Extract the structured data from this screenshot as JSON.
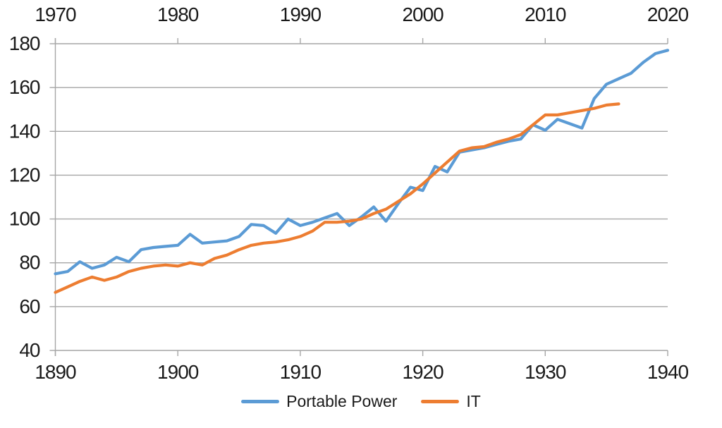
{
  "chart_data": {
    "type": "line",
    "title": "",
    "grid": true,
    "legend_position": "bottom",
    "x_axis_bottom": {
      "range": [
        1890,
        1940
      ],
      "ticks": [
        1890,
        1900,
        1910,
        1920,
        1930,
        1940
      ]
    },
    "x_axis_top": {
      "range": [
        1970,
        2020
      ],
      "ticks": [
        1970,
        1980,
        1990,
        2000,
        2010,
        2020
      ]
    },
    "y_axis": {
      "range": [
        40,
        180
      ],
      "ticks": [
        40,
        60,
        80,
        100,
        120,
        140,
        160,
        180
      ]
    },
    "series": [
      {
        "name": "Portable Power",
        "color": "#5B9BD5",
        "start_year": 1890,
        "values": [
          75,
          76,
          80.5,
          77.5,
          79,
          82.5,
          80.5,
          86,
          87,
          87.5,
          88,
          93,
          89,
          89.5,
          90,
          92,
          97.5,
          97,
          93.5,
          100,
          97,
          98.5,
          100.5,
          102.5,
          97,
          101,
          105.5,
          99,
          107,
          114.5,
          113,
          124,
          121.5,
          130.5,
          131.5,
          132.5,
          134,
          135.5,
          136.5,
          143,
          140.5,
          145.5,
          143.5,
          141.5,
          155,
          161.5,
          164,
          166.5,
          171.5,
          175.5,
          177
        ]
      },
      {
        "name": "IT",
        "color": "#ED7D31",
        "start_year": 1890,
        "values": [
          66.5,
          69,
          71.5,
          73.5,
          72,
          73.5,
          76,
          77.5,
          78.5,
          79,
          78.5,
          80,
          79,
          82,
          83.5,
          86,
          88,
          89,
          89.5,
          90.5,
          92,
          94.5,
          98.5,
          98.5,
          99,
          100,
          102.5,
          104.5,
          108,
          111.5,
          116,
          121,
          126,
          131,
          132.5,
          133,
          135,
          136.5,
          138.5,
          143,
          147.5,
          147.5,
          148.5,
          149.5,
          150.5,
          152,
          152.5
        ]
      }
    ],
    "colors": {
      "gridline": "#A6A6A6",
      "axis_line": "#A6A6A6",
      "tick_label": "#1a1a1a",
      "background": "#ffffff"
    }
  }
}
